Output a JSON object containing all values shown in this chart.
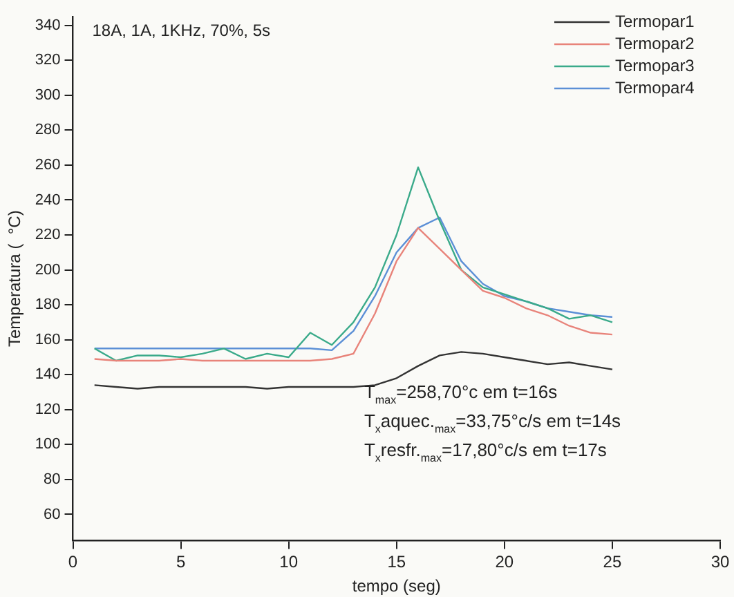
{
  "chart_data": {
    "type": "line",
    "xlabel": "tempo (seg)",
    "ylabel": "Temperatura (  °C)",
    "x": [
      1,
      2,
      3,
      4,
      5,
      6,
      7,
      8,
      9,
      10,
      11,
      12,
      13,
      14,
      15,
      16,
      17,
      18,
      19,
      20,
      21,
      22,
      23,
      24,
      25
    ],
    "series": [
      {
        "name": "Termopar1",
        "color": "#333333",
        "values": [
          134,
          133,
          132,
          133,
          133,
          133,
          133,
          133,
          132,
          133,
          133,
          133,
          133,
          134,
          138,
          145,
          151,
          153,
          152,
          150,
          148,
          146,
          147,
          145,
          143
        ]
      },
      {
        "name": "Termopar2",
        "color": "#e8837a",
        "values": [
          149,
          148,
          148,
          148,
          149,
          148,
          148,
          148,
          148,
          148,
          148,
          149,
          152,
          175,
          205,
          224,
          212,
          200,
          188,
          184,
          178,
          174,
          168,
          164,
          163
        ]
      },
      {
        "name": "Termopar3",
        "color": "#3aaa8a",
        "values": [
          155,
          148,
          151,
          151,
          150,
          152,
          155,
          149,
          152,
          150,
          164,
          157,
          170,
          190,
          220,
          258.7,
          228,
          200,
          190,
          186,
          182,
          178,
          172,
          174,
          170
        ]
      },
      {
        "name": "Termopar4",
        "color": "#5b8fd6",
        "values": [
          155,
          155,
          155,
          155,
          155,
          155,
          155,
          155,
          155,
          155,
          155,
          154,
          165,
          185,
          210,
          224,
          230,
          205,
          192,
          185,
          182,
          178,
          176,
          174,
          173
        ]
      }
    ],
    "xlim": [
      0,
      30
    ],
    "xticks": [
      0,
      5,
      10,
      15,
      20,
      25,
      30
    ],
    "ylim": [
      45,
      345
    ],
    "yticks": [
      60,
      80,
      100,
      120,
      140,
      160,
      180,
      200,
      220,
      240,
      260,
      280,
      300,
      320,
      340
    ],
    "grid": false,
    "legend": "top right",
    "marker": "none",
    "line_style": "solid",
    "annotations": [
      "18A, 1A, 1KHz, 70%, 5s",
      "T$_{max}$=258,70°c em t=16s",
      "T$_{x}$aquec.$_{max}$=33,75°c/s em t=14s",
      "T$_{x}$resfr.$_{max}$=17,80°c/s em t=17s"
    ]
  }
}
